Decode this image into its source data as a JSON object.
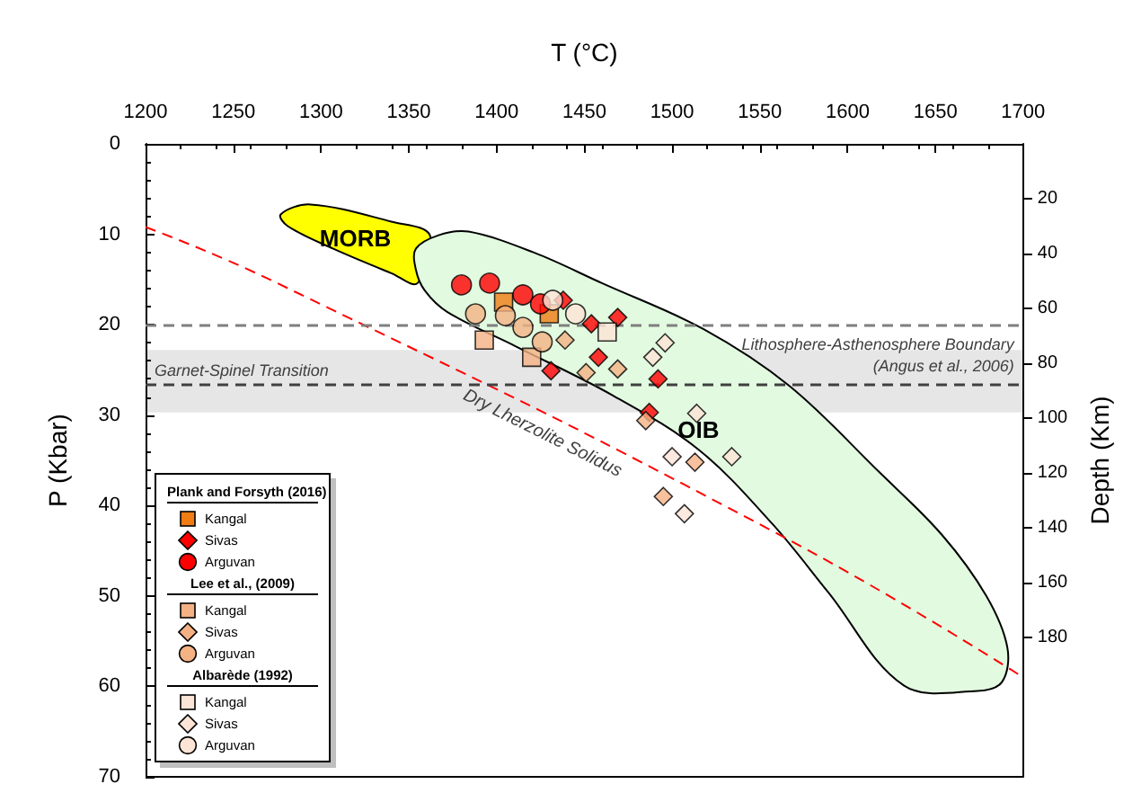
{
  "chart_data": {
    "type": "scatter",
    "xlabel": "T (°C)",
    "ylabel": "P (Kbar)",
    "y2label": "Depth (Km)",
    "xlim": [
      1200,
      1700
    ],
    "xticks": [
      1200,
      1250,
      1300,
      1350,
      1400,
      1450,
      1500,
      1550,
      1600,
      1650,
      1700
    ],
    "ylim": [
      70,
      0
    ],
    "yticks": [
      0,
      10,
      20,
      30,
      40,
      50,
      60,
      70
    ],
    "y2lim": [
      231,
      0
    ],
    "y2ticks": [
      20,
      40,
      60,
      80,
      100,
      120,
      140,
      160,
      180
    ],
    "legend": "bottom left",
    "grid": false,
    "annotations": [
      "Plank and Forsyth (2016)",
      "Lee et al., (2009)",
      "Albarède (1992)"
    ],
    "bands": [
      {
        "axis": "y",
        "from": 22.8,
        "to": 29.7,
        "label": "Garnet-Spinel Transition",
        "color": "#e6e6e6"
      }
    ],
    "ref_lines": [
      {
        "axis": "y",
        "value": 20,
        "label": "Lithosphere-Asthenosphere Boundary\n(Angus et al., 2006)",
        "color": "#7f7f7f",
        "line_style": "dashed"
      },
      {
        "axis": "y",
        "value": 26.5,
        "label": null,
        "color": "#404040",
        "line_style": "dashed"
      }
    ],
    "series": [
      {
        "type": "area",
        "name": "MORB",
        "color": "#ffff00",
        "x": [
          1277,
          1294,
          1340,
          1362,
          1355,
          1340,
          1307,
          1281
        ],
        "values": [
          7.8,
          6.7,
          8.6,
          10.1,
          15.4,
          14.3,
          11.6,
          9.1
        ]
      },
      {
        "type": "area",
        "name": "OIB",
        "color": "#e2fbe0",
        "x": [
          1354,
          1367,
          1384,
          1421,
          1460,
          1518,
          1567,
          1618,
          1654,
          1679,
          1691,
          1688,
          1674,
          1632,
          1589,
          1557,
          1515,
          1466,
          1411,
          1372,
          1359,
          1354
        ],
        "values": [
          11.6,
          10.1,
          9.7,
          12.0,
          15.4,
          20.5,
          26.8,
          36.3,
          43.3,
          50.0,
          55.7,
          59.5,
          60.5,
          59.9,
          49.6,
          42.0,
          33.8,
          27.8,
          22.4,
          18.6,
          16.2,
          13.9
        ]
      },
      {
        "type": "line",
        "name": "Dry Lherzolite Solidus",
        "color": "#ff0000",
        "line_style": "dashed",
        "marker": "none",
        "x": [
          1200,
          1275,
          1557,
          1700
        ],
        "values": [
          9.2,
          15.4,
          42.8,
          59
        ]
      },
      {
        "name": "Kangal",
        "color": "#f07c14",
        "marker": "square",
        "x": [
          1404,
          1430
        ],
        "values": [
          17.5,
          18.8
        ]
      },
      {
        "name": "Sivas",
        "color": "#ff0000",
        "marker": "diamond",
        "x": [
          1438,
          1454,
          1458,
          1431,
          1469,
          1492,
          1487
        ],
        "values": [
          17.3,
          19.9,
          23.6,
          25.1,
          19.2,
          26,
          29.7
        ]
      },
      {
        "name": "Arguvan",
        "color": "#ff0000",
        "marker": "circle",
        "x": [
          1380,
          1396,
          1415,
          1425
        ],
        "values": [
          15.6,
          15.4,
          16.7,
          17.7
        ]
      },
      {
        "name": "Kangal",
        "color": "#f4b183",
        "marker": "square",
        "x": [
          1393,
          1420
        ],
        "values": [
          21.7,
          23.6
        ]
      },
      {
        "name": "Sivas",
        "color": "#f4b183",
        "marker": "diamond",
        "x": [
          1439,
          1451,
          1469,
          1485,
          1513,
          1495
        ],
        "values": [
          21.7,
          25.3,
          24.9,
          30.6,
          35.2,
          39
        ]
      },
      {
        "name": "Arguvan",
        "color": "#f4b183",
        "marker": "circle",
        "x": [
          1388,
          1405,
          1415,
          1426
        ],
        "values": [
          18.8,
          19,
          20.3,
          21.9
        ]
      },
      {
        "name": "Kangal",
        "color": "#fce4d6",
        "marker": "square",
        "x": [
          1463
        ],
        "values": [
          20.8
        ]
      },
      {
        "name": "Sivas",
        "color": "#fce4d6",
        "marker": "diamond",
        "x": [
          1496,
          1489,
          1514,
          1500,
          1534,
          1507
        ],
        "values": [
          22,
          23.6,
          29.8,
          34.6,
          34.6,
          40.9
        ]
      },
      {
        "name": "Arguvan",
        "color": "#fce4d6",
        "marker": "circle",
        "x": [
          1432,
          1445
        ],
        "values": [
          17.3,
          18.8
        ]
      }
    ]
  }
}
